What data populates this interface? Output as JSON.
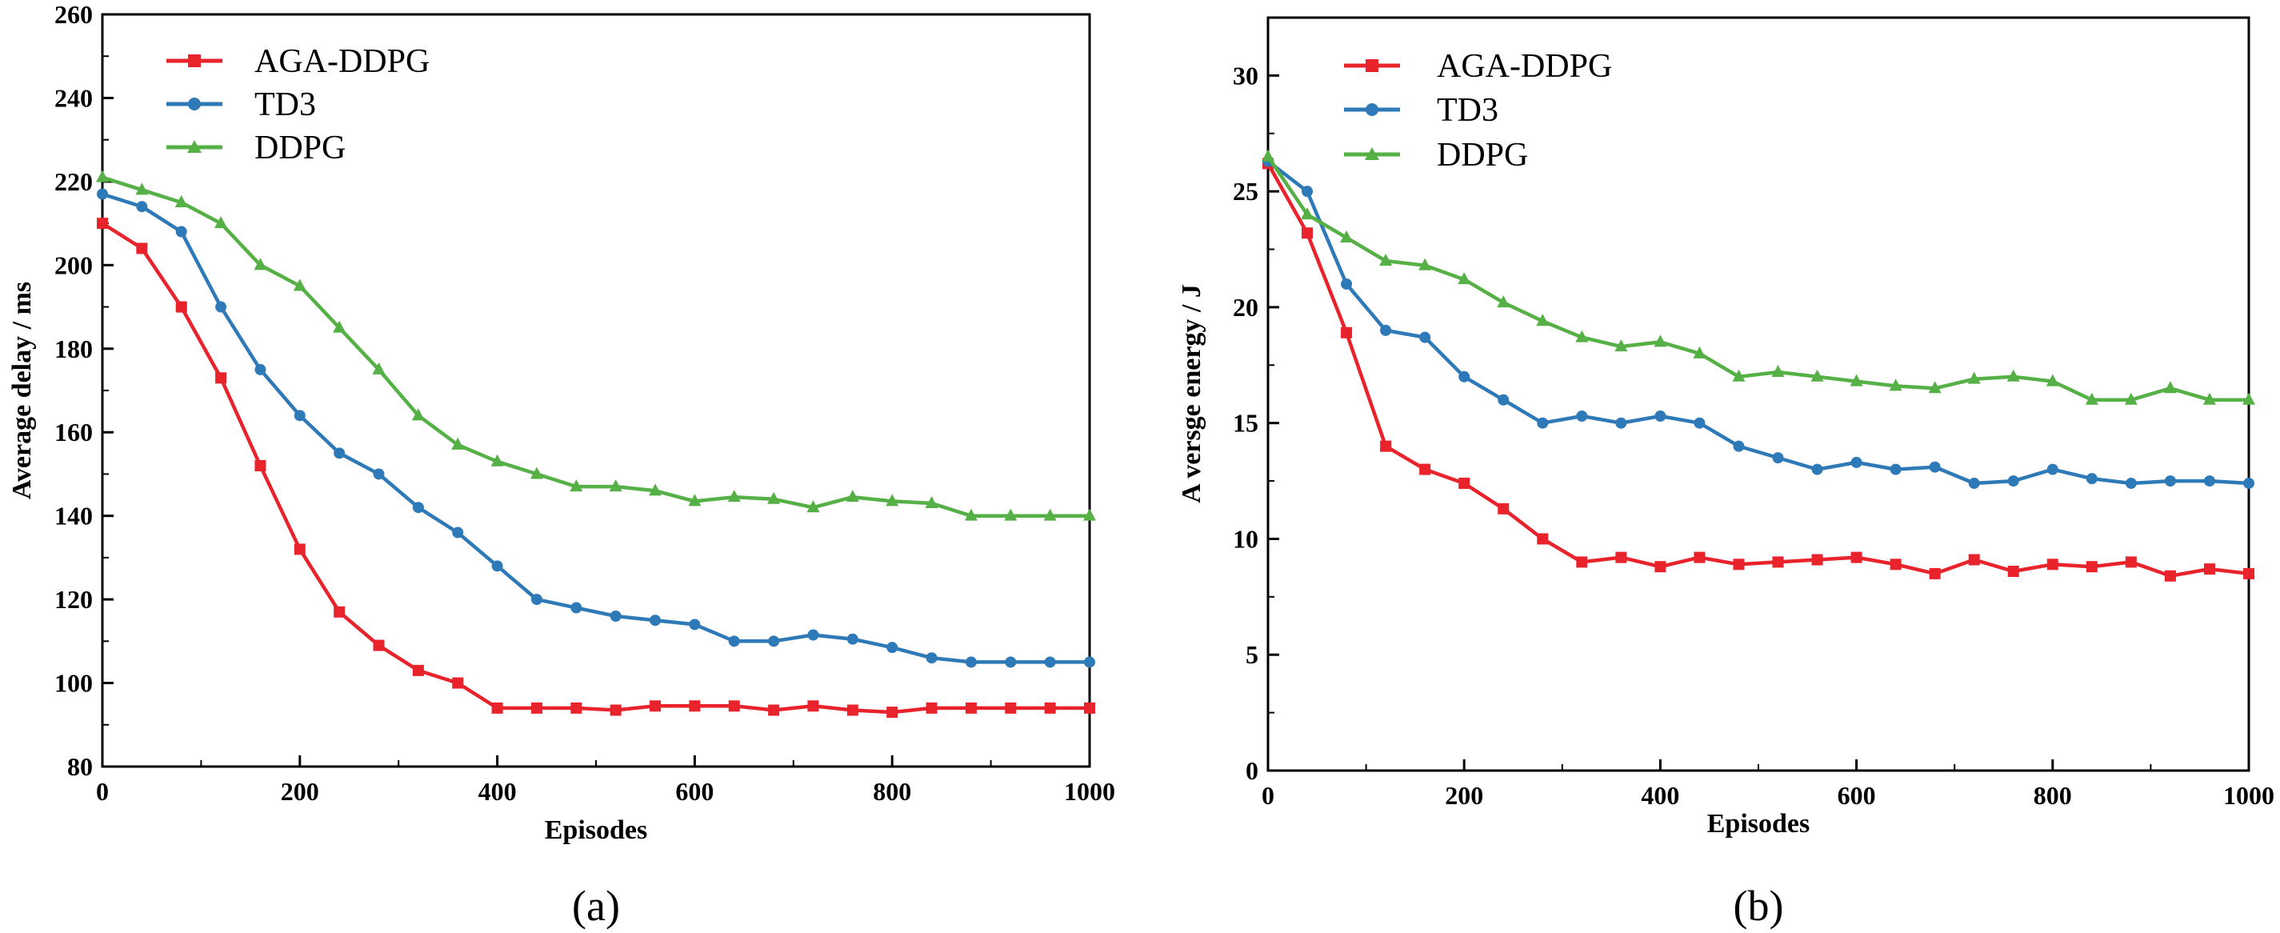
{
  "colors": {
    "AGA-DDPG": "#e8232b",
    "TD3": "#2e79b8",
    "DDPG": "#55b046"
  },
  "chart_data": [
    {
      "type": "line",
      "caption": "(a)",
      "xlabel": "Episodes",
      "ylabel": "Average delay / ms",
      "xlim": [
        0,
        1000
      ],
      "ylim": [
        80,
        260
      ],
      "xticks": [
        0,
        200,
        400,
        600,
        800,
        1000
      ],
      "yticks": [
        80,
        100,
        120,
        140,
        160,
        180,
        200,
        220,
        240,
        260
      ],
      "legend_position": "top-left",
      "x": [
        0,
        40,
        80,
        120,
        160,
        200,
        240,
        280,
        320,
        360,
        400,
        440,
        480,
        520,
        560,
        600,
        640,
        680,
        720,
        760,
        800,
        840,
        880,
        920,
        960,
        1000
      ],
      "series": [
        {
          "name": "AGA-DDPG",
          "marker": "square",
          "values": [
            210,
            204,
            190,
            173,
            152,
            132,
            117,
            109,
            103,
            100,
            94,
            94,
            94,
            93.5,
            94.5,
            94.5,
            94.5,
            93.5,
            94.5,
            93.5,
            93,
            94,
            94,
            94,
            94,
            94
          ]
        },
        {
          "name": "TD3",
          "marker": "circle",
          "values": [
            217,
            214,
            208,
            190,
            175,
            164,
            155,
            150,
            142,
            136,
            128,
            120,
            118,
            116,
            115,
            114,
            110,
            110,
            111.5,
            110.5,
            108.5,
            106,
            105,
            105,
            105,
            105
          ]
        },
        {
          "name": "DDPG",
          "marker": "triangle",
          "values": [
            221,
            218,
            215,
            210,
            200,
            195,
            185,
            175,
            164,
            157,
            153,
            150,
            147,
            147,
            146,
            143.5,
            144.5,
            144,
            142,
            144.5,
            143.5,
            143,
            140,
            140,
            140,
            140
          ]
        }
      ]
    },
    {
      "type": "line",
      "caption": "(b)",
      "xlabel": "Episodes",
      "ylabel": "A versge energy / J",
      "xlim": [
        0,
        1000
      ],
      "ylim": [
        0,
        32.5
      ],
      "xticks": [
        0,
        200,
        400,
        600,
        800,
        1000
      ],
      "yticks": [
        0,
        5,
        10,
        15,
        20,
        25,
        30
      ],
      "legend_position": "top-left",
      "x": [
        0,
        40,
        80,
        120,
        160,
        200,
        240,
        280,
        320,
        360,
        400,
        440,
        480,
        520,
        560,
        600,
        640,
        680,
        720,
        760,
        800,
        840,
        880,
        920,
        960,
        1000
      ],
      "series": [
        {
          "name": "AGA-DDPG",
          "marker": "square",
          "values": [
            26.2,
            23.2,
            18.9,
            14,
            13,
            12.4,
            11.3,
            10,
            9,
            9.2,
            8.8,
            9.2,
            8.9,
            9,
            9.1,
            9.2,
            8.9,
            8.5,
            9.1,
            8.6,
            8.9,
            8.8,
            9,
            8.4,
            8.7,
            8.5
          ]
        },
        {
          "name": "TD3",
          "marker": "circle",
          "values": [
            26.3,
            25,
            21,
            19,
            18.7,
            17,
            16,
            15,
            15.3,
            15,
            15.3,
            15,
            14,
            13.5,
            13,
            13.3,
            13,
            13.1,
            12.4,
            12.5,
            13,
            12.6,
            12.4,
            12.5,
            12.5,
            12.4
          ]
        },
        {
          "name": "DDPG",
          "marker": "triangle",
          "values": [
            26.5,
            24,
            23,
            22,
            21.8,
            21.2,
            20.2,
            19.4,
            18.7,
            18.3,
            18.5,
            18,
            17,
            17.2,
            17,
            16.8,
            16.6,
            16.5,
            16.9,
            17,
            16.8,
            16,
            16,
            16.5,
            16,
            16
          ]
        }
      ]
    }
  ]
}
